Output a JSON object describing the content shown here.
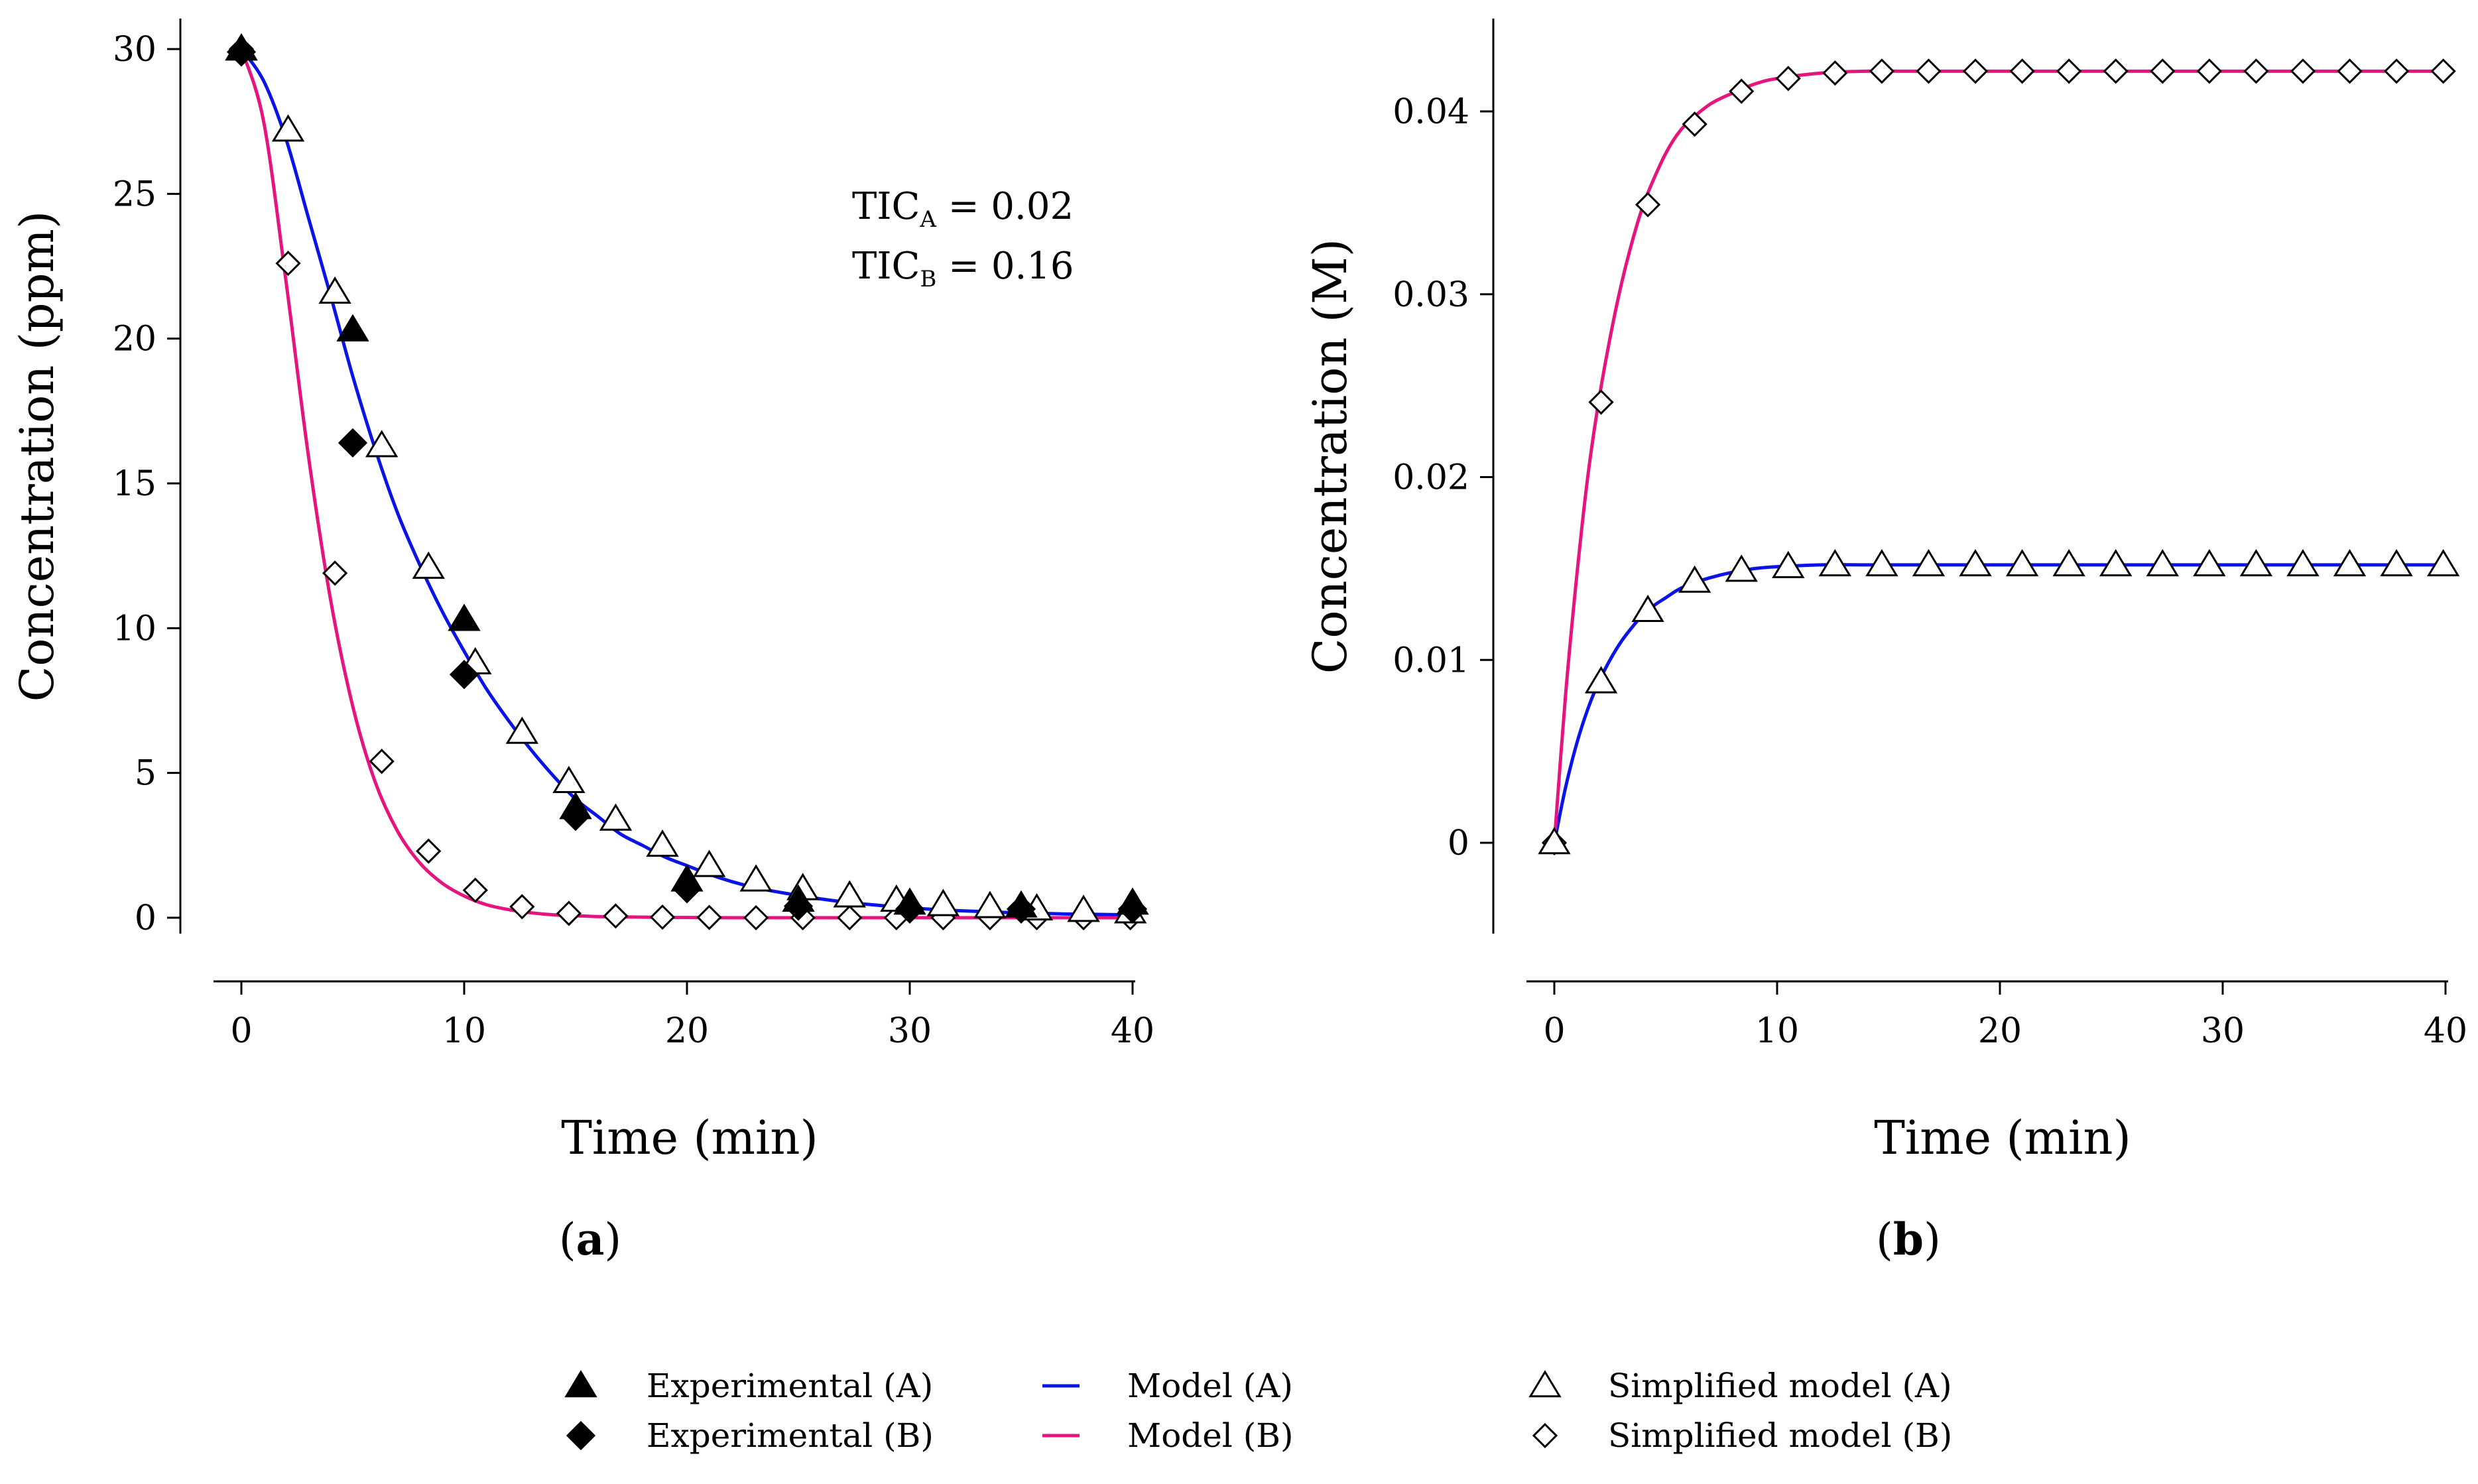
{
  "chart_data": [
    {
      "type": "line",
      "panel": "a",
      "xlabel": "Time (min)",
      "ylabel": "Concentration (ppm)",
      "xlim": [
        0,
        40
      ],
      "ylim": [
        0,
        30
      ],
      "xticks": [
        "0",
        "10",
        "20",
        "30",
        "40"
      ],
      "yticks": [
        "0",
        "5",
        "10",
        "15",
        "20",
        "25",
        "30"
      ],
      "annotation_a": {
        "base": "TIC",
        "sub": "A",
        "rest": " = 0.02"
      },
      "annotation_b": {
        "base": "TIC",
        "sub": "B",
        "rest": " = 0.16"
      },
      "series": [
        {
          "name": "Model (A)",
          "kind": "line",
          "color": "#0a14e6",
          "x": [
            0,
            1,
            2,
            3,
            4,
            5,
            6,
            7,
            8,
            9,
            10,
            11,
            12,
            13,
            14,
            15,
            16,
            17,
            18,
            19,
            20,
            21,
            22,
            23,
            24,
            25,
            26,
            27,
            28,
            29,
            30,
            31,
            32,
            33,
            34,
            35,
            36,
            37,
            38,
            39,
            40
          ],
          "y": [
            30,
            28.9,
            26.9,
            24.2,
            21.5,
            18.7,
            16.2,
            14.0,
            12.2,
            10.6,
            9.2,
            7.9,
            6.8,
            5.8,
            4.9,
            4.1,
            3.5,
            2.9,
            2.5,
            2.1,
            1.8,
            1.5,
            1.25,
            1.05,
            0.9,
            0.77,
            0.65,
            0.55,
            0.47,
            0.4,
            0.34,
            0.29,
            0.25,
            0.22,
            0.19,
            0.17,
            0.15,
            0.13,
            0.12,
            0.11,
            0.1
          ]
        },
        {
          "name": "Model (B)",
          "kind": "line",
          "color": "#e6147f",
          "x": [
            0,
            1,
            2,
            3,
            4,
            5,
            6,
            7,
            8,
            9,
            10,
            11,
            12,
            13,
            14,
            15,
            16,
            17,
            18,
            19,
            20,
            22,
            24,
            26,
            28,
            30,
            32,
            34,
            36,
            38,
            40
          ],
          "y": [
            30,
            27.5,
            22.0,
            16.0,
            11.0,
            7.3,
            4.7,
            3.0,
            1.9,
            1.2,
            0.75,
            0.45,
            0.28,
            0.17,
            0.1,
            0.07,
            0.04,
            0.03,
            0.02,
            0.01,
            0.01,
            0,
            0,
            0,
            0,
            0,
            0,
            0,
            0,
            0,
            0
          ]
        },
        {
          "name": "Experimental (A)",
          "kind": "marker",
          "marker": "filled-triangle",
          "x": [
            0,
            5,
            10,
            15,
            20,
            25,
            30,
            35,
            40
          ],
          "y": [
            30,
            20.3,
            10.3,
            3.8,
            1.3,
            0.6,
            0.5,
            0.4,
            0.5
          ]
        },
        {
          "name": "Experimental (B)",
          "kind": "marker",
          "marker": "filled-diamond",
          "x": [
            0,
            5,
            10,
            15,
            20,
            25,
            30,
            35,
            40
          ],
          "y": [
            29.9,
            16.4,
            8.4,
            3.5,
            1.0,
            0.4,
            0.3,
            0.3,
            0.3
          ]
        },
        {
          "name": "Simplified model (A)",
          "kind": "marker",
          "marker": "open-triangle",
          "x": [
            0,
            2.1,
            4.2,
            6.3,
            8.4,
            10.5,
            12.6,
            14.7,
            16.8,
            18.9,
            21,
            23.1,
            25.2,
            27.3,
            29.4,
            31.5,
            33.6,
            35.7,
            37.8,
            39.9
          ],
          "y": [
            30,
            27.2,
            21.6,
            16.3,
            12.1,
            8.8,
            6.4,
            4.7,
            3.4,
            2.5,
            1.8,
            1.3,
            1.0,
            0.75,
            0.6,
            0.45,
            0.38,
            0.3,
            0.25,
            0.2
          ]
        },
        {
          "name": "Simplified model (B)",
          "kind": "marker",
          "marker": "open-diamond",
          "x": [
            0,
            2.1,
            4.2,
            6.3,
            8.4,
            10.5,
            12.6,
            14.7,
            16.8,
            18.9,
            21,
            23.1,
            25.2,
            27.3,
            29.4,
            31.5,
            33.6,
            35.7,
            37.8,
            39.9
          ],
          "y": [
            30,
            22.6,
            11.9,
            5.4,
            2.3,
            0.95,
            0.38,
            0.15,
            0.06,
            0.02,
            0.01,
            0,
            0,
            0,
            0,
            0,
            0,
            0,
            0,
            0
          ]
        }
      ]
    },
    {
      "type": "line",
      "panel": "b",
      "xlabel": "Time (min)",
      "ylabel": "Concentration (M)",
      "xlim": [
        0,
        40
      ],
      "ylim": [
        -0.005,
        0.0452
      ],
      "xticks": [
        "0",
        "10",
        "20",
        "30",
        "40"
      ],
      "yticks": [
        "0",
        "0.01",
        "0.02",
        "0.03",
        "0.04"
      ],
      "series": [
        {
          "name": "Model (A)",
          "kind": "line",
          "color": "#0a14e6",
          "x": [
            0,
            0.5,
            1,
            1.5,
            2,
            2.5,
            3,
            3.5,
            4,
            4.5,
            5,
            5.5,
            6,
            7,
            8,
            9,
            10,
            12,
            14,
            16,
            20,
            25,
            30,
            35,
            40
          ],
          "y": [
            0,
            0.003,
            0.0054,
            0.0073,
            0.0088,
            0.01,
            0.011,
            0.0118,
            0.0125,
            0.013,
            0.0134,
            0.0138,
            0.0141,
            0.0145,
            0.0148,
            0.015,
            0.0151,
            0.0152,
            0.0152,
            0.0152,
            0.0152,
            0.0152,
            0.0152,
            0.0152,
            0.0152
          ]
        },
        {
          "name": "Model (B)",
          "kind": "line",
          "color": "#e6147f",
          "x": [
            0,
            0.5,
            1,
            1.5,
            2,
            2.5,
            3,
            3.5,
            4,
            4.5,
            5,
            5.5,
            6,
            7,
            8,
            9,
            10,
            12,
            14,
            16,
            20,
            25,
            30,
            35,
            40
          ],
          "y": [
            0,
            0.008,
            0.0145,
            0.02,
            0.0242,
            0.0276,
            0.0305,
            0.0329,
            0.0349,
            0.0364,
            0.0377,
            0.0387,
            0.0394,
            0.0404,
            0.041,
            0.0415,
            0.0418,
            0.0421,
            0.0422,
            0.0422,
            0.0422,
            0.0422,
            0.0422,
            0.0422,
            0.0422
          ]
        },
        {
          "name": "Simplified model (A)",
          "kind": "marker",
          "marker": "open-triangle",
          "x": [
            0,
            2.1,
            4.2,
            6.3,
            8.4,
            10.5,
            12.6,
            14.7,
            16.8,
            18.9,
            21,
            23.1,
            25.2,
            27.3,
            29.4,
            31.5,
            33.6,
            35.7,
            37.8,
            39.9
          ],
          "y": [
            0,
            0.0088,
            0.0127,
            0.0143,
            0.0149,
            0.0151,
            0.0152,
            0.0152,
            0.0152,
            0.0152,
            0.0152,
            0.0152,
            0.0152,
            0.0152,
            0.0152,
            0.0152,
            0.0152,
            0.0152,
            0.0152,
            0.0152
          ]
        },
        {
          "name": "Simplified model (B)",
          "kind": "marker",
          "marker": "open-diamond",
          "x": [
            0,
            2.1,
            4.2,
            6.3,
            8.4,
            10.5,
            12.6,
            14.7,
            16.8,
            18.9,
            21,
            23.1,
            25.2,
            27.3,
            29.4,
            31.5,
            33.6,
            35.7,
            37.8,
            39.9
          ],
          "y": [
            0,
            0.0241,
            0.0349,
            0.0393,
            0.0411,
            0.0418,
            0.0421,
            0.0422,
            0.0422,
            0.0422,
            0.0422,
            0.0422,
            0.0422,
            0.0422,
            0.0422,
            0.0422,
            0.0422,
            0.0422,
            0.0422,
            0.0422
          ]
        }
      ]
    }
  ],
  "panel_labels": {
    "a": "a",
    "b": "b"
  },
  "legend": {
    "placement": "bottom-center",
    "items": [
      {
        "label": "Experimental (A)",
        "marker": "filled-triangle"
      },
      {
        "label": "Experimental (B)",
        "marker": "filled-diamond"
      },
      {
        "label": "Model (A)",
        "marker": "line",
        "color": "#0a14e6"
      },
      {
        "label": "Model (B)",
        "marker": "line",
        "color": "#e6147f"
      },
      {
        "label": "Simplified model (A)",
        "marker": "open-triangle"
      },
      {
        "label": "Simplified model (B)",
        "marker": "open-diamond"
      }
    ]
  }
}
